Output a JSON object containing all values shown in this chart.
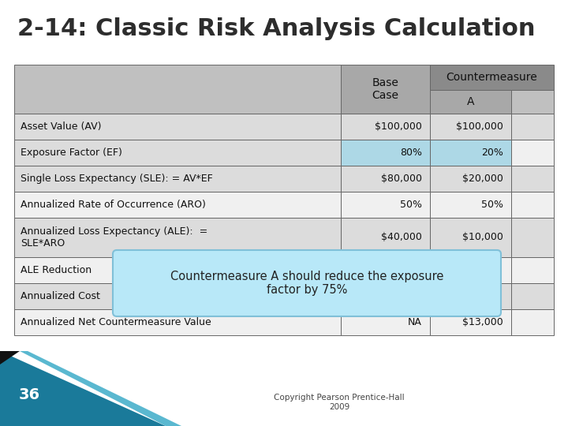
{
  "title": "2-14: Classic Risk Analysis Calculation",
  "title_fontsize": 22,
  "title_color": "#2d2d2d",
  "background_color": "#ffffff",
  "header_dark_bg": "#8a8a8a",
  "header_mid_bg": "#a8a8a8",
  "header_light_bg": "#c0c0c0",
  "row_bg_odd": "#dcdcdc",
  "row_bg_even": "#f0f0f0",
  "ef_highlight": "#add8e6",
  "tooltip_bg": "#b8e8f8",
  "tooltip_border": "#80c0d8",
  "rows": [
    [
      "Asset Value (AV)",
      "$100,000",
      "$100,000",
      ""
    ],
    [
      "Exposure Factor (EF)",
      "80%",
      "20%",
      ""
    ],
    [
      "Single Loss Expectancy (SLE): = AV*EF",
      "$80,000",
      "$20,000",
      ""
    ],
    [
      "Annualized Rate of Occurrence (ARO)",
      "50%",
      "50%",
      ""
    ],
    [
      "Annualized Loss Expectancy (ALE):  =\nSLE*ARO",
      "$40,000",
      "$10,000",
      ""
    ],
    [
      "ALE Reduction",
      "",
      "",
      ""
    ],
    [
      "Annualized Cost",
      "",
      "",
      ""
    ],
    [
      "Annualized Net Countermeasure Value",
      "NA",
      "$13,000",
      ""
    ]
  ],
  "tooltip_text": "Countermeasure A should reduce the exposure\nfactor by 75%",
  "footer_text": "Copyright Pearson Prentice-Hall\n2009",
  "page_number": "36",
  "teal_color": "#1a7a9a",
  "black_stripe": "#111111"
}
